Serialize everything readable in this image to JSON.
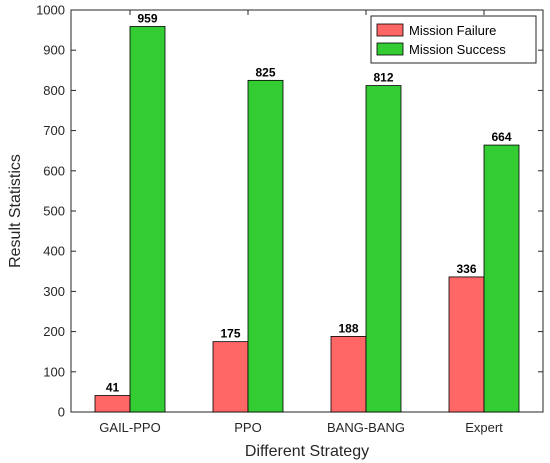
{
  "chart_data": {
    "type": "bar",
    "xlabel": "Different Strategy",
    "ylabel": "Result Statistics",
    "categories": [
      "GAIL-PPO",
      "PPO",
      "BANG-BANG",
      "Expert"
    ],
    "series": [
      {
        "name": "Mission Failure",
        "color": "#ff6666",
        "values": [
          41,
          175,
          188,
          336
        ]
      },
      {
        "name": "Mission Success",
        "color": "#33cc33",
        "values": [
          959,
          825,
          812,
          664
        ]
      }
    ],
    "ylim": [
      0,
      1000
    ],
    "yticks": [
      0,
      100,
      200,
      300,
      400,
      500,
      600,
      700,
      800,
      900,
      1000
    ],
    "grid": false,
    "legend_position": "top-right",
    "data_labels": true
  }
}
